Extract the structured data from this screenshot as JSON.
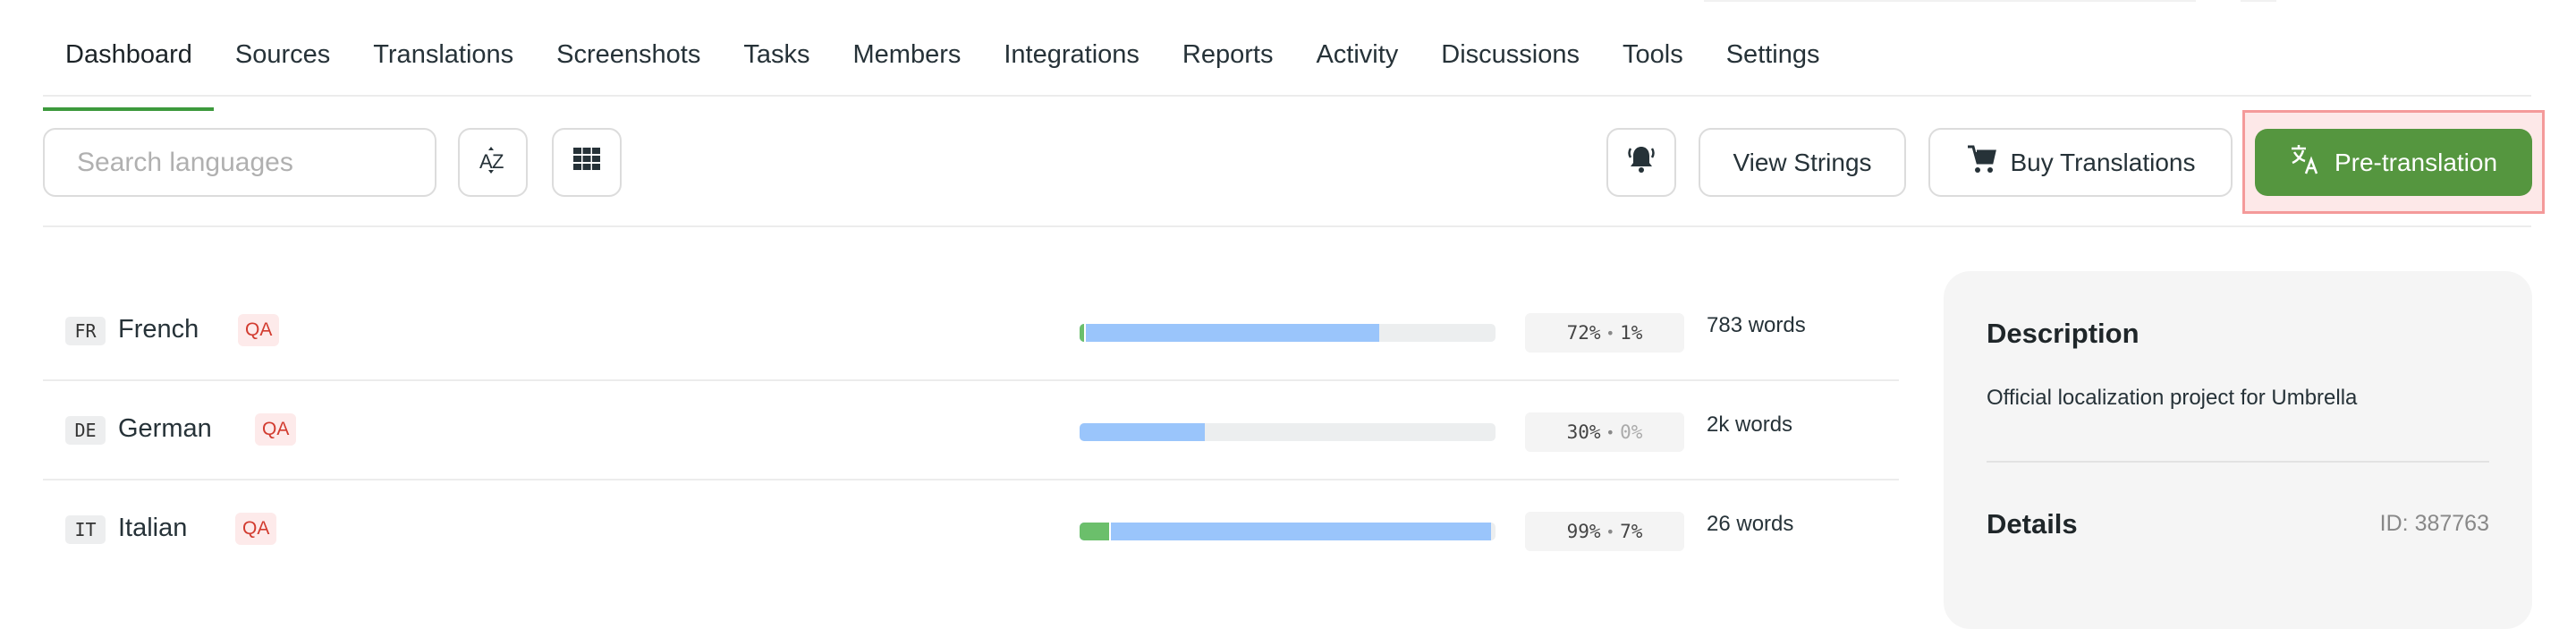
{
  "nav": {
    "tabs": [
      {
        "label": "Dashboard",
        "active": true
      },
      {
        "label": "Sources"
      },
      {
        "label": "Translations"
      },
      {
        "label": "Screenshots"
      },
      {
        "label": "Tasks"
      },
      {
        "label": "Members"
      },
      {
        "label": "Integrations"
      },
      {
        "label": "Reports"
      },
      {
        "label": "Activity"
      },
      {
        "label": "Discussions"
      },
      {
        "label": "Tools"
      },
      {
        "label": "Settings"
      }
    ]
  },
  "toolbar": {
    "search_placeholder": "Search languages",
    "sort_icon": "sort-az-icon",
    "view_icon": "grid-view-icon",
    "notify_icon": "bell-icon",
    "view_strings_label": "View Strings",
    "buy_translations_label": "Buy Translations",
    "pre_translation_label": "Pre-translation",
    "accent_color": "#55963f"
  },
  "languages": [
    {
      "code": "FR",
      "name": "French",
      "badge": "QA",
      "translated_pct": 72,
      "approved_pct": 1,
      "translated_label": "72%",
      "approved_label": "1%",
      "words": "783 words"
    },
    {
      "code": "DE",
      "name": "German",
      "badge": "QA",
      "translated_pct": 30,
      "approved_pct": 0,
      "translated_label": "30%",
      "approved_label": "0%",
      "words": "2k words"
    },
    {
      "code": "IT",
      "name": "Italian",
      "badge": "QA",
      "translated_pct": 99,
      "approved_pct": 7,
      "translated_label": "99%",
      "approved_label": "7%",
      "words": "26 words"
    }
  ],
  "sidebar_card": {
    "description_title": "Description",
    "description_text": "Official localization project for Umbrella",
    "details_title": "Details",
    "project_id": "ID: 387763"
  }
}
